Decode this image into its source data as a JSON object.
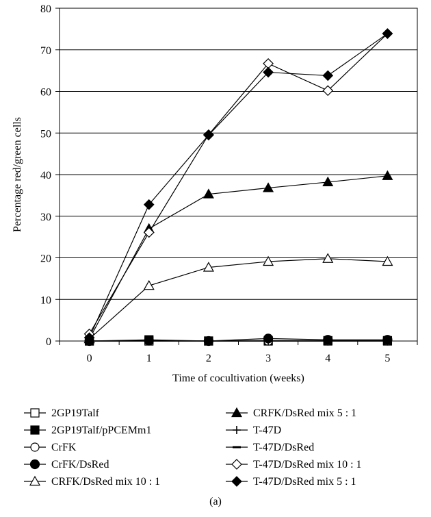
{
  "chart_data": {
    "type": "line",
    "title": "",
    "xlabel": "Time of cocultivation (weeks)",
    "ylabel": "Percentage red/green cells",
    "caption": "(a)",
    "x": [
      0,
      1,
      2,
      3,
      4,
      5
    ],
    "xticks": [
      "0",
      "1",
      "2",
      "3",
      "4",
      "5"
    ],
    "ylim": [
      0,
      80
    ],
    "yticks": [
      "0",
      "10",
      "20",
      "30",
      "40",
      "50",
      "60",
      "70",
      "80"
    ],
    "grid": "horizontal",
    "legend_position": "bottom",
    "series": [
      {
        "name": "2GP19Talf",
        "marker": "square-open",
        "values": [
          0,
          0,
          0,
          0,
          0,
          0
        ]
      },
      {
        "name": "2GP19Talf/pPCEMm1",
        "marker": "square-filled",
        "values": [
          0,
          0.3,
          0,
          0.1,
          0.1,
          0.1
        ]
      },
      {
        "name": "CrFK",
        "marker": "circle-open",
        "values": [
          0,
          0,
          0,
          0,
          0,
          0
        ]
      },
      {
        "name": "CrFK/DsRed",
        "marker": "circle-filled",
        "values": [
          0,
          0.1,
          0,
          0.6,
          0.3,
          0.3
        ]
      },
      {
        "name": "CRFK/DsRed mix 10 : 1",
        "marker": "triangle-open",
        "values": [
          0.5,
          13.3,
          17.7,
          19.1,
          19.8,
          19.1
        ]
      },
      {
        "name": "CRFK/DsRed mix 5 : 1",
        "marker": "triangle-filled",
        "values": [
          0.5,
          27,
          35.3,
          36.8,
          38.2,
          39.7
        ]
      },
      {
        "name": "T-47D",
        "marker": "plus",
        "values": [
          0,
          0,
          0,
          0,
          0,
          0
        ]
      },
      {
        "name": "T-47D/DsRed",
        "marker": "dash",
        "values": [
          0,
          0,
          0,
          0,
          0,
          0
        ]
      },
      {
        "name": "T-47D/DsRed mix 10 : 1",
        "marker": "diamond-open",
        "values": [
          1.7,
          26.1,
          49.6,
          66.7,
          60.2,
          73.9
        ]
      },
      {
        "name": "T-47D/DsRed mix 5 : 1",
        "marker": "diamond-filled",
        "values": [
          0.8,
          32.8,
          49.5,
          64.6,
          63.8,
          73.9
        ]
      }
    ]
  }
}
